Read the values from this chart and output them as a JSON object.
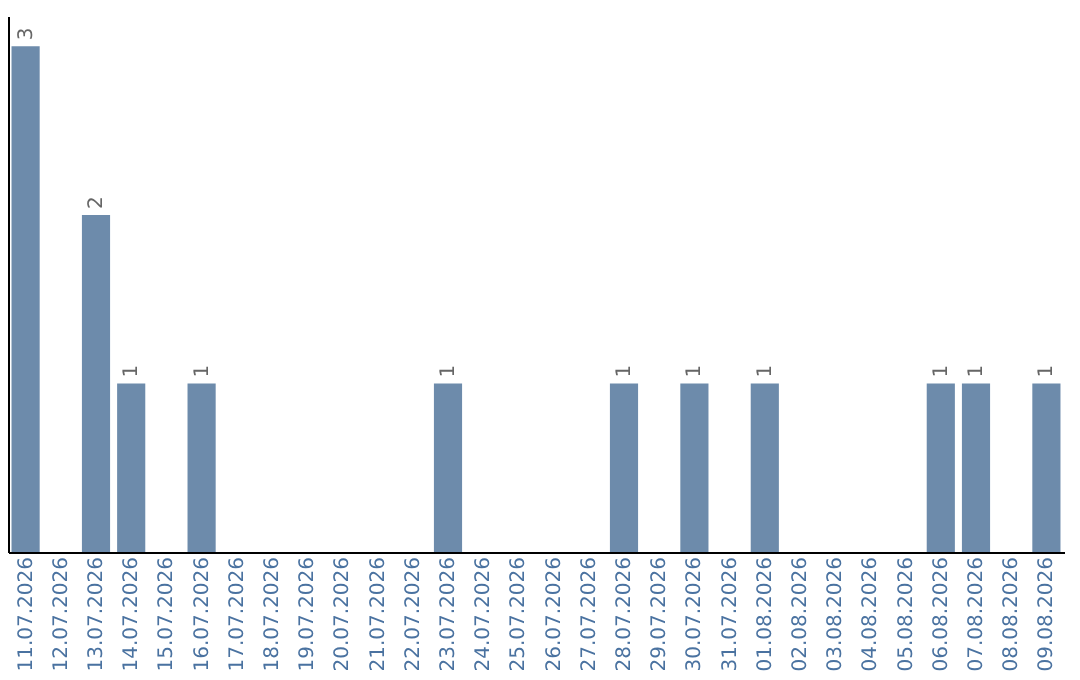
{
  "chart_data": {
    "type": "bar",
    "categories": [
      "11.07.2026",
      "12.07.2026",
      "13.07.2026",
      "14.07.2026",
      "15.07.2026",
      "16.07.2026",
      "17.07.2026",
      "18.07.2026",
      "19.07.2026",
      "20.07.2026",
      "21.07.2026",
      "22.07.2026",
      "23.07.2026",
      "24.07.2026",
      "25.07.2026",
      "26.07.2026",
      "27.07.2026",
      "28.07.2026",
      "29.07.2026",
      "30.07.2026",
      "31.07.2026",
      "01.08.2026",
      "02.08.2026",
      "03.08.2026",
      "04.08.2026",
      "05.08.2026",
      "06.08.2026",
      "07.08.2026",
      "08.08.2026",
      "09.08.2026"
    ],
    "values": [
      3,
      0,
      2,
      1,
      0,
      1,
      0,
      0,
      0,
      0,
      0,
      0,
      1,
      0,
      0,
      0,
      0,
      1,
      0,
      1,
      0,
      1,
      0,
      0,
      0,
      0,
      1,
      1,
      0,
      1
    ],
    "value_labels": [
      "3",
      null,
      "2",
      "1",
      null,
      "1",
      null,
      null,
      null,
      null,
      null,
      null,
      "1",
      null,
      null,
      null,
      null,
      "1",
      null,
      "1",
      null,
      "1",
      null,
      null,
      null,
      null,
      "1",
      "1",
      null,
      "1"
    ],
    "color": "#6d8bab",
    "tick_labels": "x",
    "grid": false
  }
}
